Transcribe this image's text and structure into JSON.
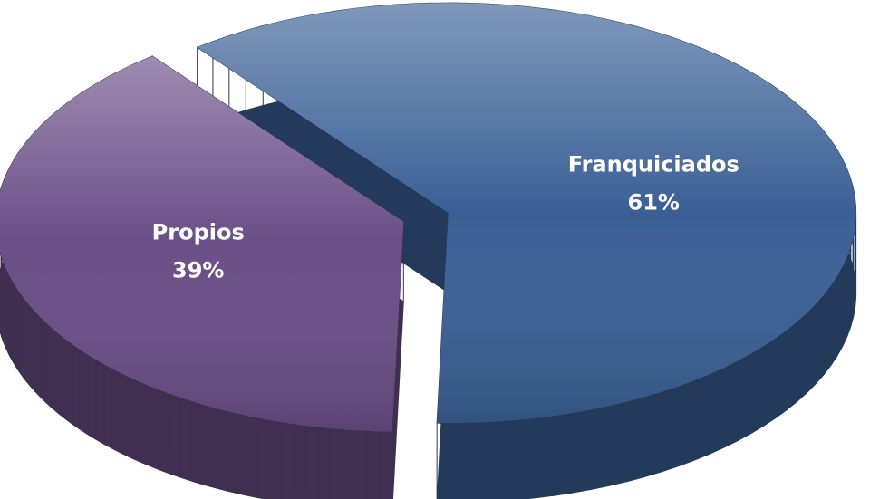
{
  "chart_data": {
    "type": "pie",
    "categories": [
      "Franquiciados",
      "Propios"
    ],
    "values": [
      61,
      39
    ],
    "value_labels": [
      "61%",
      "39%"
    ],
    "colors": [
      "#3b6096",
      "#6a4e86"
    ]
  }
}
